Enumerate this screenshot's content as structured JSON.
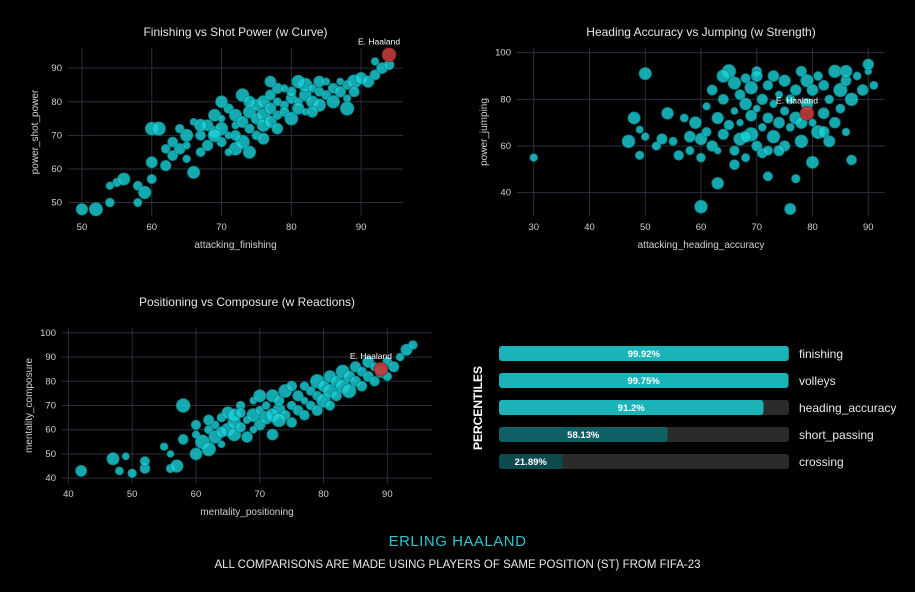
{
  "player_name": "ERLING HAALAND",
  "footer_note": "ALL COMPARISONS ARE MADE USING PLAYERS OF SAME POSITION (ST) FROM FIFA-23",
  "highlight_label": "E. Haaland",
  "colors": {
    "points": "#19d3da",
    "highlight": "#c23a3a",
    "bar": "#1ab3b8",
    "accent_text": "#2fc4cc",
    "background": "#000000"
  },
  "chart_data": [
    {
      "type": "scatter",
      "title": "Finishing vs Shot Power (w Curve)",
      "xlabel": "attacking_finishing",
      "ylabel": "power_shot_power",
      "xlim": [
        48,
        96
      ],
      "ylim": [
        46,
        96
      ],
      "xticks": [
        50,
        60,
        70,
        80,
        90
      ],
      "yticks": [
        50,
        60,
        70,
        80,
        90
      ],
      "grid": true,
      "highlight": {
        "name": "E. Haaland",
        "x": 94,
        "y": 94
      },
      "points": [
        [
          50,
          48
        ],
        [
          52,
          48
        ],
        [
          54,
          50
        ],
        [
          54,
          55
        ],
        [
          55,
          56
        ],
        [
          56,
          57
        ],
        [
          58,
          50
        ],
        [
          58,
          55
        ],
        [
          59,
          53
        ],
        [
          60,
          57
        ],
        [
          60,
          62
        ],
        [
          60,
          72
        ],
        [
          61,
          72
        ],
        [
          62,
          61
        ],
        [
          62,
          66
        ],
        [
          63,
          64
        ],
        [
          63,
          68
        ],
        [
          64,
          66
        ],
        [
          64,
          72
        ],
        [
          65,
          70
        ],
        [
          65,
          63
        ],
        [
          66,
          59
        ],
        [
          66,
          74
        ],
        [
          67,
          65
        ],
        [
          67,
          70
        ],
        [
          68,
          67
        ],
        [
          68,
          73
        ],
        [
          69,
          71
        ],
        [
          69,
          76
        ],
        [
          70,
          68
        ],
        [
          70,
          72
        ],
        [
          70,
          75
        ],
        [
          71,
          70
        ],
        [
          71,
          78
        ],
        [
          72,
          66
        ],
        [
          72,
          73
        ],
        [
          72,
          76
        ],
        [
          73,
          74
        ],
        [
          73,
          82
        ],
        [
          74,
          72
        ],
        [
          74,
          77
        ],
        [
          74,
          65
        ],
        [
          75,
          75
        ],
        [
          75,
          79
        ],
        [
          75,
          70
        ],
        [
          76,
          76
        ],
        [
          76,
          80
        ],
        [
          76,
          73
        ],
        [
          77,
          78
        ],
        [
          77,
          82
        ],
        [
          77,
          74
        ],
        [
          78,
          76
        ],
        [
          78,
          80
        ],
        [
          78,
          84
        ],
        [
          79,
          79
        ],
        [
          79,
          77
        ],
        [
          80,
          81
        ],
        [
          80,
          75
        ],
        [
          80,
          83
        ],
        [
          81,
          80
        ],
        [
          81,
          78
        ],
        [
          82,
          82
        ],
        [
          82,
          85
        ],
        [
          82,
          77
        ],
        [
          83,
          80
        ],
        [
          83,
          84
        ],
        [
          84,
          83
        ],
        [
          84,
          79
        ],
        [
          85,
          82
        ],
        [
          85,
          86
        ],
        [
          86,
          84
        ],
        [
          86,
          80
        ],
        [
          87,
          83
        ],
        [
          87,
          86
        ],
        [
          88,
          81
        ],
        [
          88,
          85
        ],
        [
          89,
          86
        ],
        [
          89,
          83
        ],
        [
          90,
          87
        ],
        [
          91,
          86
        ],
        [
          92,
          88
        ],
        [
          92,
          92
        ],
        [
          93,
          90
        ],
        [
          94,
          91
        ],
        [
          73,
          68
        ],
        [
          71,
          65
        ],
        [
          69,
          70
        ],
        [
          67,
          73
        ],
        [
          76,
          69
        ],
        [
          79,
          84
        ],
        [
          81,
          86
        ],
        [
          84,
          86
        ],
        [
          78,
          72
        ],
        [
          74,
          80
        ],
        [
          72,
          70
        ],
        [
          70,
          80
        ],
        [
          77,
          86
        ],
        [
          83,
          77
        ],
        [
          88,
          78
        ],
        [
          65,
          67
        ]
      ]
    },
    {
      "type": "scatter",
      "title": "Heading Accuracy vs Jumping (w Strength)",
      "xlabel": "attacking_heading_accuracy",
      "ylabel": "power_jumping",
      "xlim": [
        27,
        93
      ],
      "ylim": [
        30,
        102
      ],
      "xticks": [
        30,
        40,
        50,
        60,
        70,
        80,
        90
      ],
      "yticks": [
        40,
        60,
        80,
        100
      ],
      "grid": true,
      "highlight": {
        "name": "E. Haaland",
        "x": 79,
        "y": 74
      },
      "points": [
        [
          30,
          55
        ],
        [
          47,
          62
        ],
        [
          48,
          72
        ],
        [
          49,
          67
        ],
        [
          49,
          56
        ],
        [
          50,
          64
        ],
        [
          50,
          91
        ],
        [
          52,
          60
        ],
        [
          53,
          63
        ],
        [
          54,
          74
        ],
        [
          55,
          62
        ],
        [
          56,
          56
        ],
        [
          57,
          72
        ],
        [
          58,
          64
        ],
        [
          58,
          58
        ],
        [
          59,
          70
        ],
        [
          60,
          34
        ],
        [
          60,
          55
        ],
        [
          60,
          63
        ],
        [
          61,
          66
        ],
        [
          61,
          77
        ],
        [
          62,
          60
        ],
        [
          62,
          84
        ],
        [
          63,
          58
        ],
        [
          63,
          72
        ],
        [
          63,
          44
        ],
        [
          64,
          65
        ],
        [
          64,
          80
        ],
        [
          65,
          69
        ],
        [
          65,
          92
        ],
        [
          66,
          58
        ],
        [
          66,
          75
        ],
        [
          66,
          87
        ],
        [
          67,
          63
        ],
        [
          67,
          70
        ],
        [
          67,
          82
        ],
        [
          68,
          55
        ],
        [
          68,
          78
        ],
        [
          68,
          89
        ],
        [
          69,
          65
        ],
        [
          69,
          73
        ],
        [
          69,
          85
        ],
        [
          70,
          60
        ],
        [
          70,
          76
        ],
        [
          70,
          92
        ],
        [
          71,
          68
        ],
        [
          71,
          80
        ],
        [
          71,
          57
        ],
        [
          72,
          72
        ],
        [
          72,
          86
        ],
        [
          72,
          47
        ],
        [
          73,
          64
        ],
        [
          73,
          78
        ],
        [
          73,
          90
        ],
        [
          74,
          70
        ],
        [
          74,
          82
        ],
        [
          75,
          60
        ],
        [
          75,
          75
        ],
        [
          75,
          88
        ],
        [
          76,
          33
        ],
        [
          76,
          68
        ],
        [
          76,
          80
        ],
        [
          77,
          46
        ],
        [
          77,
          72
        ],
        [
          77,
          84
        ],
        [
          78,
          62
        ],
        [
          78,
          92
        ],
        [
          79,
          78
        ],
        [
          79,
          88
        ],
        [
          80,
          53
        ],
        [
          80,
          70
        ],
        [
          80,
          84
        ],
        [
          81,
          66
        ],
        [
          81,
          90
        ],
        [
          82,
          74
        ],
        [
          82,
          86
        ],
        [
          83,
          62
        ],
        [
          83,
          80
        ],
        [
          84,
          92
        ],
        [
          84,
          70
        ],
        [
          85,
          84
        ],
        [
          85,
          76
        ],
        [
          86,
          88
        ],
        [
          86,
          66
        ],
        [
          87,
          54
        ],
        [
          87,
          80
        ],
        [
          88,
          90
        ],
        [
          89,
          84
        ],
        [
          90,
          92
        ],
        [
          90,
          95
        ],
        [
          91,
          86
        ],
        [
          66,
          52
        ],
        [
          68,
          64
        ],
        [
          70,
          90
        ],
        [
          74,
          58
        ],
        [
          64,
          90
        ],
        [
          72,
          58
        ],
        [
          78,
          70
        ],
        [
          82,
          66
        ],
        [
          86,
          92
        ]
      ]
    },
    {
      "type": "scatter",
      "title": "Positioning vs Composure (w Reactions)",
      "xlabel": "mentality_positioning",
      "ylabel": "mentality_composure",
      "xlim": [
        39,
        97
      ],
      "ylim": [
        38,
        102
      ],
      "xticks": [
        40,
        50,
        60,
        70,
        80,
        90
      ],
      "yticks": [
        40,
        50,
        60,
        70,
        80,
        90,
        100
      ],
      "grid": true,
      "highlight": {
        "name": "E. Haaland",
        "x": 89,
        "y": 85
      },
      "points": [
        [
          42,
          43
        ],
        [
          47,
          48
        ],
        [
          48,
          43
        ],
        [
          49,
          49
        ],
        [
          50,
          42
        ],
        [
          52,
          44
        ],
        [
          52,
          47
        ],
        [
          55,
          53
        ],
        [
          56,
          44
        ],
        [
          56,
          50
        ],
        [
          57,
          45
        ],
        [
          58,
          70
        ],
        [
          58,
          56
        ],
        [
          60,
          50
        ],
        [
          60,
          58
        ],
        [
          61,
          55
        ],
        [
          62,
          60
        ],
        [
          62,
          52
        ],
        [
          63,
          62
        ],
        [
          63,
          57
        ],
        [
          64,
          54
        ],
        [
          64,
          65
        ],
        [
          65,
          60
        ],
        [
          65,
          67
        ],
        [
          66,
          58
        ],
        [
          66,
          63
        ],
        [
          67,
          61
        ],
        [
          67,
          70
        ],
        [
          68,
          64
        ],
        [
          68,
          57
        ],
        [
          69,
          66
        ],
        [
          69,
          72
        ],
        [
          70,
          62
        ],
        [
          70,
          68
        ],
        [
          71,
          70
        ],
        [
          71,
          65
        ],
        [
          72,
          58
        ],
        [
          72,
          74
        ],
        [
          73,
          68
        ],
        [
          73,
          72
        ],
        [
          74,
          66
        ],
        [
          74,
          76
        ],
        [
          75,
          70
        ],
        [
          75,
          63
        ],
        [
          76,
          74
        ],
        [
          76,
          68
        ],
        [
          77,
          78
        ],
        [
          77,
          72
        ],
        [
          78,
          70
        ],
        [
          78,
          76
        ],
        [
          79,
          80
        ],
        [
          79,
          74
        ],
        [
          80,
          72
        ],
        [
          80,
          78
        ],
        [
          81,
          76
        ],
        [
          81,
          82
        ],
        [
          82,
          74
        ],
        [
          82,
          80
        ],
        [
          83,
          84
        ],
        [
          83,
          78
        ],
        [
          84,
          82
        ],
        [
          84,
          76
        ],
        [
          85,
          86
        ],
        [
          85,
          80
        ],
        [
          86,
          84
        ],
        [
          86,
          78
        ],
        [
          87,
          88
        ],
        [
          87,
          82
        ],
        [
          88,
          86
        ],
        [
          88,
          80
        ],
        [
          89,
          84
        ],
        [
          90,
          88
        ],
        [
          90,
          82
        ],
        [
          91,
          86
        ],
        [
          92,
          90
        ],
        [
          93,
          93
        ],
        [
          94,
          95
        ],
        [
          69,
          60
        ],
        [
          72,
          66
        ],
        [
          75,
          78
        ],
        [
          77,
          66
        ],
        [
          79,
          68
        ],
        [
          81,
          70
        ],
        [
          70,
          74
        ],
        [
          66,
          66
        ],
        [
          64,
          59
        ],
        [
          62,
          64
        ],
        [
          60,
          62
        ],
        [
          67,
          67
        ],
        [
          73,
          64
        ]
      ]
    },
    {
      "type": "bar",
      "orientation": "horizontal",
      "ylabel": "PERCENTILES",
      "xlim": [
        0,
        100
      ],
      "categories": [
        "finishing",
        "volleys",
        "heading_accuracy",
        "short_passing",
        "crossing"
      ],
      "values": [
        99.92,
        99.75,
        91.2,
        58.13,
        21.89
      ],
      "value_labels": [
        "99.92%",
        "99.75%",
        "91.2%",
        "58.13%",
        "21.89%"
      ]
    }
  ]
}
